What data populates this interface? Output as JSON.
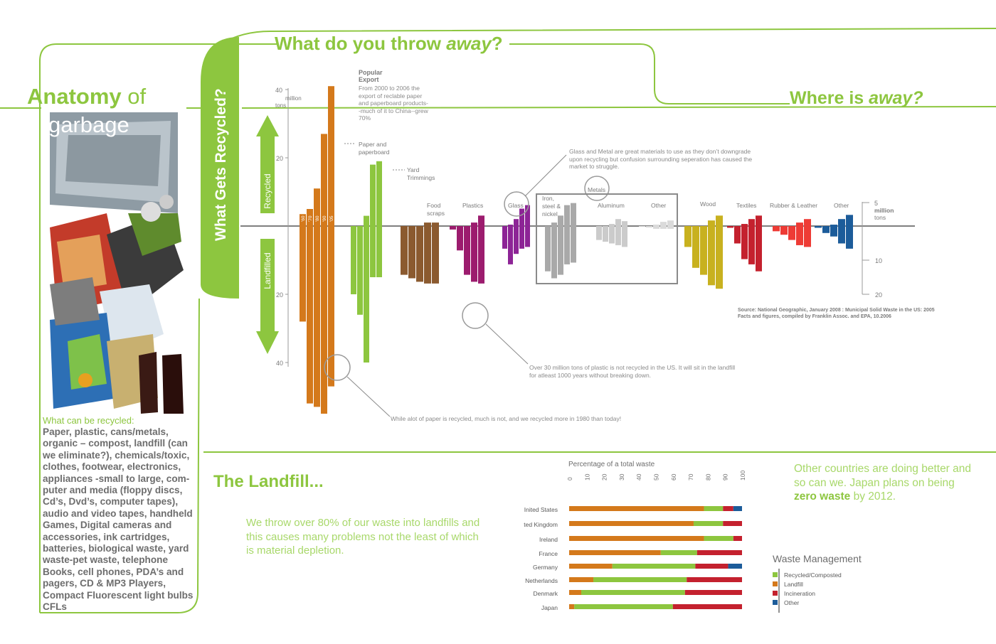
{
  "titles": {
    "main_prefix": "What do you throw ",
    "main_em": "away",
    "main_suffix": "?",
    "where_prefix": "Where is ",
    "where_em": "away?",
    "anatomy_1": "Anatomy",
    "anatomy_2": " of",
    "garbage": "garbage",
    "vertical": "What Gets Recycled?",
    "recycled_arrow": "Recycled",
    "landfilled_arrow": "Landfilled"
  },
  "recyclable": {
    "heading": "What can be recycled:",
    "body": "Paper, plastic, cans/metals, organic – compost, landfill (can we eliminate?), chemicals/toxic, clothes, footwear, electronics, appliances -small to large, com-puter and media (floppy discs, Cd’s, Dvd’s, computer tapes), audio and video tapes, handheld Games, Digital cameras and accessories, ink cartridges, batteries, biological waste, yard waste-pet waste, telephone Books, cell phones, PDA’s and pagers, CD & MP3 Players, Compact Fluorescent light bulbs CFLs"
  },
  "landfill": {
    "title": "The Landfill...",
    "body": "We throw over 80% of our waste into landfills and this causes many problems not the least of which is material depletion."
  },
  "countries_note": {
    "part1": "Other countries are doing better and so can we.  Japan plans on being ",
    "bold": "zero waste",
    "part2": " by 2012."
  },
  "annotations": {
    "popular_export_title": "Popular Export",
    "popular_export_body": "From 2000 to 2006 the export of reclable paper and paperboard products--much of it to China--grew 70%",
    "glass_metal": "Glass and Metal are great materials to use as they don’t downgrade upon recycling but confusion surrounding seperation has caused the market to struggle.",
    "plastic": "Over 30 million tons of plastic is not recycled in the US. It will sit in the landfill for atleast 1000 years without breaking down.",
    "paper": "While alot of paper is recycled, much is not, and we recycled more in 1980 than today!",
    "metals_circle": "Metals",
    "source": "Source: National Geographic, January 2008 : Municipal Solid Waste in the US: 2005 Facts and figures, compiled by Franklin Assoc. and EPA, 10.2006"
  },
  "chart_data": [
    {
      "type": "bar",
      "title": "What Gets Recycled?",
      "units": "million tons",
      "left_axis": {
        "recycled_ticks": [
          "20",
          "40"
        ],
        "landfilled_ticks": [
          "20",
          "40"
        ],
        "top_label": "40 million tons"
      },
      "right_axis": {
        "recycled_ticks": [
          "5"
        ],
        "landfilled_ticks": [
          "10",
          "20"
        ],
        "top_label": "5 million tons"
      },
      "year_labels": [
        "'60",
        "'70",
        "'80",
        "'90",
        "'05"
      ],
      "categories": [
        {
          "name": "Paper and paperboard",
          "color": "#d4791b",
          "scale": "left",
          "recycled": [
            3.5,
            5,
            11,
            27,
            41
          ],
          "landfilled": [
            28,
            52,
            53,
            55,
            47
          ]
        },
        {
          "name": "Yard Trimmings",
          "color": "#8dc63f",
          "scale": "left",
          "recycled": [
            0,
            0,
            3,
            18,
            19
          ],
          "landfilled": [
            20,
            26,
            40,
            15,
            15
          ]
        },
        {
          "name": "Food scraps",
          "color": "#8b5a2f",
          "scale": "right",
          "recycled": [
            0,
            0,
            0,
            0.5,
            0.5
          ],
          "landfilled": [
            14,
            15,
            16,
            16.5,
            16.5
          ]
        },
        {
          "name": "Plastics",
          "color": "#9c1c6e",
          "scale": "right",
          "recycled": [
            0,
            0,
            0,
            0.5,
            1.5
          ],
          "landfilled": [
            1,
            7,
            14,
            16,
            16.5
          ]
        },
        {
          "name": "Glass",
          "color": "#8d2496",
          "scale": "right",
          "recycled": [
            0,
            0.2,
            1,
            2.5,
            3
          ],
          "landfilled": [
            6.5,
            11,
            8,
            6.5,
            6
          ]
        },
        {
          "name": "Iron, steel & nickel",
          "color": "#a9a9a9",
          "scale": "right",
          "recycled": [
            0,
            0.5,
            1.5,
            3,
            3.3
          ],
          "landfilled": [
            13,
            15,
            14,
            11,
            10.5
          ]
        },
        {
          "name": "Aluminum",
          "color": "#cbcbcb",
          "scale": "right",
          "recycled": [
            0,
            0,
            0.3,
            1,
            0.7
          ],
          "landfilled": [
            4,
            4.5,
            5,
            5.5,
            6
          ]
        },
        {
          "name": "Other",
          "color": "#dadada",
          "scale": "right",
          "recycled": [
            0,
            0,
            0.2,
            0.6,
            0.8
          ],
          "landfilled": [
            0.2,
            0.4,
            0.8,
            0.8,
            0.8
          ]
        },
        {
          "name": "Wood",
          "color": "#c8b11f",
          "scale": "right",
          "recycled": [
            0,
            0,
            0,
            0.8,
            1.5
          ],
          "landfilled": [
            6,
            12,
            14,
            17,
            18
          ]
        },
        {
          "name": "Textiles",
          "color": "#c4212e",
          "scale": "right",
          "recycled": [
            0,
            0,
            0.3,
            1,
            1.5
          ],
          "landfilled": [
            0.5,
            5,
            9.5,
            11,
            13
          ]
        },
        {
          "name": "Rubber & Leather",
          "color": "#ee3b35",
          "scale": "right",
          "recycled": [
            0,
            0,
            0,
            0.5,
            1
          ],
          "landfilled": [
            1.5,
            2.5,
            4,
            5.5,
            6
          ]
        },
        {
          "name": "Other",
          "color": "#1c5c9a",
          "scale": "right",
          "recycled": [
            0,
            0,
            0.2,
            1,
            1.6
          ],
          "landfilled": [
            0.5,
            2,
            3,
            5,
            6.5
          ]
        }
      ]
    },
    {
      "type": "bar",
      "orientation": "horizontal",
      "stacked": true,
      "title": "Percentage of a total waste",
      "legend_title": "Waste Management",
      "xlim": [
        0,
        100
      ],
      "ticks": [
        "0",
        "10",
        "20",
        "30",
        "40",
        "50",
        "60",
        "70",
        "80",
        "90",
        "100"
      ],
      "categories": [
        "United States",
        "United Kingdom",
        "Ireland",
        "France",
        "Germany",
        "Netherlands",
        "Denmark",
        "Japan"
      ],
      "visible_labels": [
        "Inited States",
        "ted Kingdom",
        "Ireland",
        "France",
        "Germany",
        "Netherlands",
        "Denmark",
        "Japan"
      ],
      "series": [
        {
          "name": "Recycled/Composted",
          "color": "#8dc63f",
          "values": [
            11,
            17,
            17,
            21,
            48,
            54,
            60,
            57
          ]
        },
        {
          "name": "Landfill",
          "color": "#d4791b",
          "values": [
            78,
            72,
            78,
            53,
            25,
            14,
            7,
            3
          ]
        },
        {
          "name": "Incineration",
          "color": "#c4212e",
          "values": [
            6,
            11,
            5,
            26,
            19,
            32,
            33,
            40
          ]
        },
        {
          "name": "Other",
          "color": "#1c5c9a",
          "values": [
            5,
            0,
            0,
            0,
            8,
            0,
            0,
            0
          ]
        }
      ]
    }
  ],
  "colors": {
    "accent": "#8dc63f",
    "grey": "#7f7f7f"
  }
}
